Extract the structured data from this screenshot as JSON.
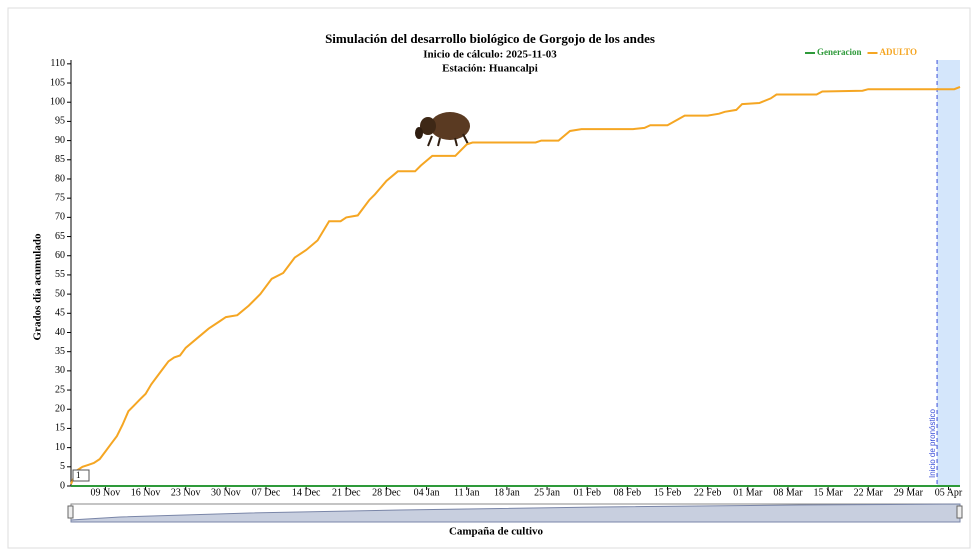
{
  "chart_data": {
    "type": "line",
    "title": "Simulación del desarrollo biológico de Gorgojo de los andes",
    "subtitle": "Inicio de cálculo: 2025-11-03",
    "subtitle2": "Estación: Huancalpi",
    "xlabel": "Campaña de cultivo",
    "ylabel": "Grados día acumulado",
    "legend": "top-right",
    "xlim": [
      "03 Nov",
      "07 Apr"
    ],
    "ylim": [
      0,
      111
    ],
    "xticks": [
      "09 Nov",
      "16 Nov",
      "23 Nov",
      "30 Nov",
      "07 Dec",
      "14 Dec",
      "21 Dec",
      "28 Dec",
      "04 Jan",
      "11 Jan",
      "18 Jan",
      "25 Jan",
      "01 Feb",
      "08 Feb",
      "15 Feb",
      "22 Feb",
      "01 Mar",
      "08 Mar",
      "15 Mar",
      "22 Mar",
      "29 Mar",
      "05 Apr"
    ],
    "yticks": [
      0,
      5,
      10,
      15,
      20,
      25,
      30,
      35,
      40,
      45,
      50,
      55,
      60,
      65,
      70,
      75,
      80,
      85,
      90,
      95,
      100,
      105,
      110
    ],
    "forecast_start": "03 Apr",
    "forecast_label": "Inicio de pronóstico",
    "marker_label": "1",
    "series": [
      {
        "name": "Generacion",
        "color": "#2e9a3a",
        "x": [
          "03 Nov",
          "07 Apr"
        ],
        "values": [
          0,
          0
        ]
      },
      {
        "name": "ADULTO",
        "color": "#f5a623",
        "x": [
          "03 Nov",
          "04 Nov",
          "05 Nov",
          "06 Nov",
          "07 Nov",
          "08 Nov",
          "09 Nov",
          "10 Nov",
          "11 Nov",
          "12 Nov",
          "13 Nov",
          "14 Nov",
          "15 Nov",
          "16 Nov",
          "17 Nov",
          "18 Nov",
          "19 Nov",
          "20 Nov",
          "21 Nov",
          "22 Nov",
          "23 Nov",
          "25 Nov",
          "27 Nov",
          "29 Nov",
          "30 Nov",
          "02 Dec",
          "04 Dec",
          "06 Dec",
          "08 Dec",
          "10 Dec",
          "12 Dec",
          "14 Dec",
          "16 Dec",
          "18 Dec",
          "20 Dec",
          "21 Dec",
          "23 Dec",
          "25 Dec",
          "26 Dec",
          "28 Dec",
          "30 Dec",
          "02 Jan",
          "03 Jan",
          "05 Jan",
          "09 Jan",
          "11 Jan",
          "12 Jan",
          "23 Jan",
          "24 Jan",
          "27 Jan",
          "29 Jan",
          "31 Jan",
          "09 Feb",
          "11 Feb",
          "12 Feb",
          "15 Feb",
          "18 Feb",
          "22 Feb",
          "24 Feb",
          "25 Feb",
          "27 Feb",
          "28 Feb",
          "03 Mar",
          "05 Mar",
          "06 Mar",
          "13 Mar",
          "14 Mar",
          "21 Mar",
          "22 Mar",
          "06 Apr",
          "07 Apr"
        ],
        "values": [
          0.5,
          4,
          5,
          5.5,
          6,
          7,
          9,
          11,
          13,
          16,
          19.5,
          21,
          22.5,
          24,
          26.5,
          28.5,
          30.5,
          32.5,
          33.5,
          34,
          36,
          38.5,
          41,
          43,
          44,
          44.5,
          47,
          50,
          54,
          55.5,
          59.5,
          61.5,
          64,
          69,
          69,
          70,
          70.5,
          74.5,
          76,
          79.5,
          82,
          82,
          83.5,
          86,
          86,
          89,
          89.5,
          89.5,
          90,
          90,
          92.5,
          93,
          93,
          93.3,
          94,
          94,
          96.5,
          96.5,
          97,
          97.5,
          98,
          99.5,
          99.8,
          101,
          102,
          102,
          102.8,
          103,
          103.4,
          103.4,
          104
        ]
      }
    ]
  }
}
